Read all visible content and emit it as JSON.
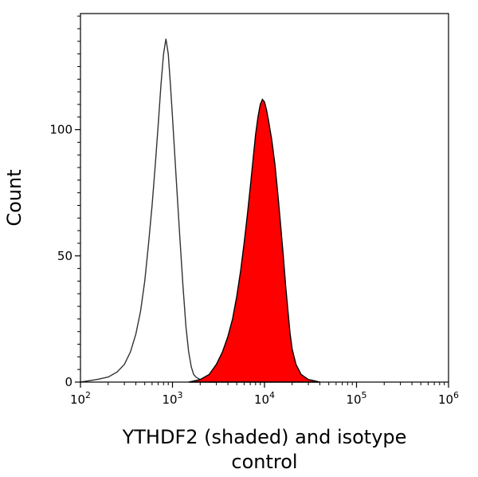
{
  "chart_data": {
    "type": "area",
    "title": "",
    "xlabel_lines": [
      "YTHDF2 (shaded) and isotype",
      "control"
    ],
    "ylabel": "Count",
    "x_scale": "log",
    "xlim": [
      100,
      1000000
    ],
    "ylim": [
      0,
      146
    ],
    "x_ticks": [
      {
        "value": 100,
        "base": "10",
        "exp": "2"
      },
      {
        "value": 1000,
        "base": "10",
        "exp": "3"
      },
      {
        "value": 10000,
        "base": "10",
        "exp": "4"
      },
      {
        "value": 100000,
        "base": "10",
        "exp": "5"
      },
      {
        "value": 1000000,
        "base": "10",
        "exp": "6"
      }
    ],
    "y_ticks": [
      {
        "value": 0,
        "label": "0"
      },
      {
        "value": 50,
        "label": "50"
      },
      {
        "value": 100,
        "label": "100"
      }
    ],
    "grid": false,
    "series": [
      {
        "style": "outline",
        "color": "#333333",
        "x": [
          100,
          150,
          200,
          250,
          300,
          350,
          400,
          450,
          500,
          550,
          600,
          650,
          700,
          750,
          800,
          850,
          900,
          950,
          1000,
          1100,
          1200,
          1300,
          1400,
          1500,
          1600,
          1700,
          1800,
          2000,
          2200,
          2500,
          3000
        ],
        "y": [
          0,
          1,
          2,
          4,
          7,
          12,
          19,
          28,
          40,
          55,
          70,
          86,
          102,
          118,
          130,
          136,
          130,
          118,
          105,
          80,
          58,
          38,
          22,
          12,
          6,
          3,
          2,
          1,
          0.5,
          0,
          0
        ]
      },
      {
        "style": "filled",
        "color": "#ff0000",
        "x": [
          1500,
          2000,
          2500,
          3000,
          3500,
          4000,
          4500,
          5000,
          5500,
          6000,
          6500,
          7000,
          7500,
          8000,
          8500,
          9000,
          9500,
          10000,
          10500,
          11000,
          12000,
          13000,
          14000,
          15000,
          16000,
          17000,
          18000,
          19000,
          20000,
          22000,
          25000,
          30000,
          35000,
          40000
        ],
        "y": [
          0,
          1,
          3,
          7,
          12,
          18,
          25,
          34,
          44,
          55,
          66,
          77,
          88,
          98,
          105,
          110,
          112,
          111,
          108,
          104,
          96,
          86,
          74,
          62,
          50,
          38,
          28,
          19,
          13,
          7,
          3,
          1,
          0.5,
          0
        ]
      }
    ]
  }
}
